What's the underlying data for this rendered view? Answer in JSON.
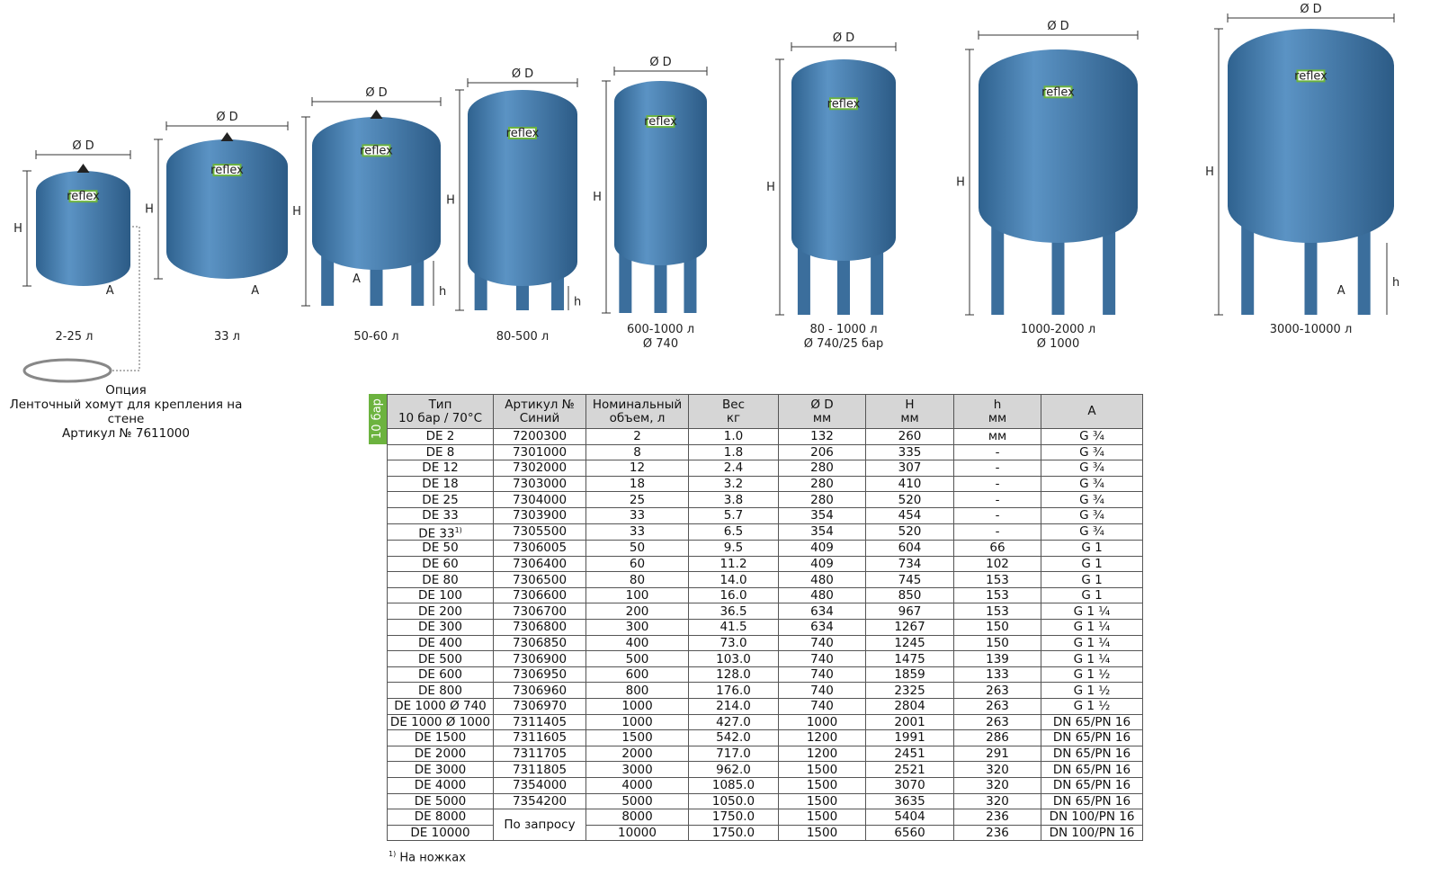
{
  "labels": {
    "diameter": "Ø D",
    "height": "H",
    "leg_height": "h",
    "connection": "A",
    "brand": "reflex"
  },
  "tanks": [
    {
      "caption": [
        "2-25 л"
      ]
    },
    {
      "caption": [
        "33 л"
      ]
    },
    {
      "caption": [
        "50-60 л"
      ]
    },
    {
      "caption": [
        "80-500 л"
      ]
    },
    {
      "caption": [
        "600-1000 л",
        "Ø 740"
      ]
    },
    {
      "caption": [
        "80 - 1000 л",
        "Ø 740/25 бар"
      ]
    },
    {
      "caption": [
        "1000-2000 л",
        "Ø 1000"
      ]
    },
    {
      "caption": [
        "3000-10000 л"
      ]
    }
  ],
  "option": {
    "title": "Опция",
    "description": "Ленточный хомут для крепления на стене",
    "article": "Артикул № 7611000"
  },
  "table": {
    "badge": "10 бар",
    "header": [
      [
        "Тип",
        "10 бар / 70°C"
      ],
      [
        "Артикул №",
        "Синий"
      ],
      [
        "Номинальный",
        "объем, л"
      ],
      [
        "Вес",
        "кг"
      ],
      [
        "Ø D",
        "мм"
      ],
      [
        "H",
        "мм"
      ],
      [
        "h",
        "мм"
      ],
      [
        "A"
      ]
    ],
    "rows": [
      [
        "DE 2",
        "7200300",
        "2",
        "1.0",
        "132",
        "260",
        "мм",
        "G ¾"
      ],
      [
        "DE 8",
        "7301000",
        "8",
        "1.8",
        "206",
        "335",
        "-",
        "G ¾"
      ],
      [
        "DE 12",
        "7302000",
        "12",
        "2.4",
        "280",
        "307",
        "-",
        "G ¾"
      ],
      [
        "DE 18",
        "7303000",
        "18",
        "3.2",
        "280",
        "410",
        "-",
        "G ¾"
      ],
      [
        "DE 25",
        "7304000",
        "25",
        "3.8",
        "280",
        "520",
        "-",
        "G ¾"
      ],
      [
        "DE 33",
        "7303900",
        "33",
        "5.7",
        "354",
        "454",
        "-",
        "G ¾"
      ],
      [
        {
          "text": "DE 33",
          "note": "1)"
        },
        "7305500",
        "33",
        "6.5",
        "354",
        "520",
        "-",
        "G ¾"
      ],
      [
        "DE 50",
        "7306005",
        "50",
        "9.5",
        "409",
        "604",
        "66",
        "G 1"
      ],
      [
        "DE 60",
        "7306400",
        "60",
        "11.2",
        "409",
        "734",
        "102",
        "G 1"
      ],
      [
        "DE 80",
        "7306500",
        "80",
        "14.0",
        "480",
        "745",
        "153",
        "G 1"
      ],
      [
        "DE 100",
        "7306600",
        "100",
        "16.0",
        "480",
        "850",
        "153",
        "G 1"
      ],
      [
        "DE 200",
        "7306700",
        "200",
        "36.5",
        "634",
        "967",
        "153",
        "G 1 ¼"
      ],
      [
        "DE 300",
        "7306800",
        "300",
        "41.5",
        "634",
        "1267",
        "150",
        "G 1 ¼"
      ],
      [
        "DE 400",
        "7306850",
        "400",
        "73.0",
        "740",
        "1245",
        "150",
        "G 1 ¼"
      ],
      [
        "DE 500",
        "7306900",
        "500",
        "103.0",
        "740",
        "1475",
        "139",
        "G 1 ¼"
      ],
      [
        "DE 600",
        "7306950",
        "600",
        "128.0",
        "740",
        "1859",
        "133",
        "G 1 ½"
      ],
      [
        "DE 800",
        "7306960",
        "800",
        "176.0",
        "740",
        "2325",
        "263",
        "G 1 ½"
      ],
      [
        "DE 1000 Ø 740",
        "7306970",
        "1000",
        "214.0",
        "740",
        "2804",
        "263",
        "G 1 ½"
      ],
      [
        "DE 1000 Ø 1000",
        "7311405",
        "1000",
        "427.0",
        "1000",
        "2001",
        "263",
        "DN 65/PN 16"
      ],
      [
        "DE 1500",
        "7311605",
        "1500",
        "542.0",
        "1200",
        "1991",
        "286",
        "DN 65/PN 16"
      ],
      [
        "DE 2000",
        "7311705",
        "2000",
        "717.0",
        "1200",
        "2451",
        "291",
        "DN 65/PN 16"
      ],
      [
        "DE 3000",
        "7311805",
        "3000",
        "962.0",
        "1500",
        "2521",
        "320",
        "DN 65/PN 16"
      ],
      [
        "DE 4000",
        "7354000",
        "4000",
        "1085.0",
        "1500",
        "3070",
        "320",
        "DN 65/PN 16"
      ],
      [
        "DE 5000",
        "7354200",
        "5000",
        "1050.0",
        "1500",
        "3635",
        "320",
        "DN 65/PN 16"
      ],
      [
        "DE 8000",
        "По запросу",
        "8000",
        "1750.0",
        "1500",
        "5404",
        "236",
        "DN 100/PN 16"
      ],
      [
        "DE 10000",
        null,
        "10000",
        "1750.0",
        "1500",
        "6560",
        "236",
        "DN 100/PN 16"
      ]
    ]
  },
  "footnote": {
    "mark": "1)",
    "text": "На ножках"
  }
}
